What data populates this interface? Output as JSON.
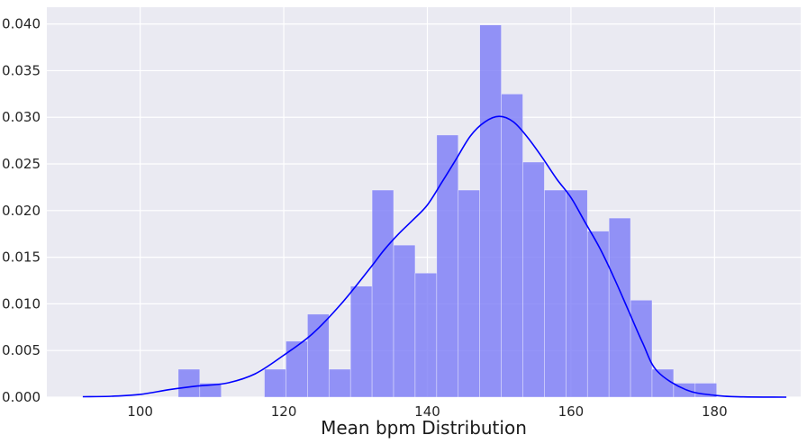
{
  "chart_data": {
    "type": "bar",
    "xlabel": "Mean bpm Distribution",
    "ylabel": "",
    "xlim": [
      87,
      192
    ],
    "ylim": [
      0,
      0.0418
    ],
    "x_ticks": [
      100,
      120,
      140,
      160,
      180
    ],
    "y_ticks": [
      0.0,
      0.005,
      0.01,
      0.015,
      0.02,
      0.025,
      0.03,
      0.035,
      0.04
    ],
    "x_tick_labels": [
      "100",
      "120",
      "140",
      "160",
      "180"
    ],
    "y_tick_labels": [
      "0.000",
      "0.005",
      "0.010",
      "0.015",
      "0.020",
      "0.025",
      "0.030",
      "0.035",
      "0.040"
    ],
    "grid": true,
    "style": {
      "background": "#EAEAF2",
      "grid_color": "#FFFFFF",
      "bar_color": "#7B7BF6",
      "bar_opacity": 0.8,
      "kde_color": "#0000FF"
    },
    "bins": [
      {
        "x0": 105.3,
        "x1": 108.3,
        "value": 0.003
      },
      {
        "x0": 108.3,
        "x1": 111.3,
        "value": 0.0015
      },
      {
        "x0": 111.3,
        "x1": 114.3,
        "value": 0.0
      },
      {
        "x0": 114.3,
        "x1": 117.3,
        "value": 0.0
      },
      {
        "x0": 117.3,
        "x1": 120.3,
        "value": 0.003
      },
      {
        "x0": 120.3,
        "x1": 123.3,
        "value": 0.006
      },
      {
        "x0": 123.3,
        "x1": 126.3,
        "value": 0.0089
      },
      {
        "x0": 126.3,
        "x1": 129.3,
        "value": 0.003
      },
      {
        "x0": 129.3,
        "x1": 132.3,
        "value": 0.0119
      },
      {
        "x0": 132.3,
        "x1": 135.3,
        "value": 0.0222
      },
      {
        "x0": 135.3,
        "x1": 138.3,
        "value": 0.0163
      },
      {
        "x0": 138.3,
        "x1": 141.3,
        "value": 0.0133
      },
      {
        "x0": 141.3,
        "x1": 144.3,
        "value": 0.0281
      },
      {
        "x0": 144.3,
        "x1": 147.3,
        "value": 0.0222
      },
      {
        "x0": 147.3,
        "x1": 150.3,
        "value": 0.0399
      },
      {
        "x0": 150.3,
        "x1": 153.3,
        "value": 0.0325
      },
      {
        "x0": 153.3,
        "x1": 156.3,
        "value": 0.0252
      },
      {
        "x0": 156.3,
        "x1": 159.3,
        "value": 0.0222
      },
      {
        "x0": 159.3,
        "x1": 162.3,
        "value": 0.0222
      },
      {
        "x0": 162.3,
        "x1": 165.3,
        "value": 0.0178
      },
      {
        "x0": 165.3,
        "x1": 168.3,
        "value": 0.0192
      },
      {
        "x0": 168.3,
        "x1": 171.3,
        "value": 0.0104
      },
      {
        "x0": 171.3,
        "x1": 174.3,
        "value": 0.003
      },
      {
        "x0": 174.3,
        "x1": 177.3,
        "value": 0.0015
      },
      {
        "x0": 177.3,
        "x1": 180.3,
        "value": 0.0015
      }
    ],
    "kde": {
      "x": [
        92,
        96,
        100,
        104,
        108,
        112,
        116,
        120,
        124,
        128,
        132,
        134,
        136,
        138,
        140,
        142,
        144,
        146,
        148,
        150,
        152,
        154,
        156,
        158,
        160,
        162,
        164,
        166,
        168,
        170,
        172,
        176,
        180,
        184,
        190
      ],
      "y": [
        5e-05,
        0.0001,
        0.0003,
        0.0008,
        0.0012,
        0.0015,
        0.0025,
        0.0045,
        0.0068,
        0.01,
        0.0138,
        0.0158,
        0.0175,
        0.019,
        0.0206,
        0.023,
        0.0255,
        0.028,
        0.0295,
        0.0301,
        0.0295,
        0.0278,
        0.0257,
        0.0234,
        0.0214,
        0.0187,
        0.016,
        0.0128,
        0.0093,
        0.0058,
        0.0028,
        0.0008,
        0.0002,
        3e-05,
        0.0
      ]
    }
  }
}
